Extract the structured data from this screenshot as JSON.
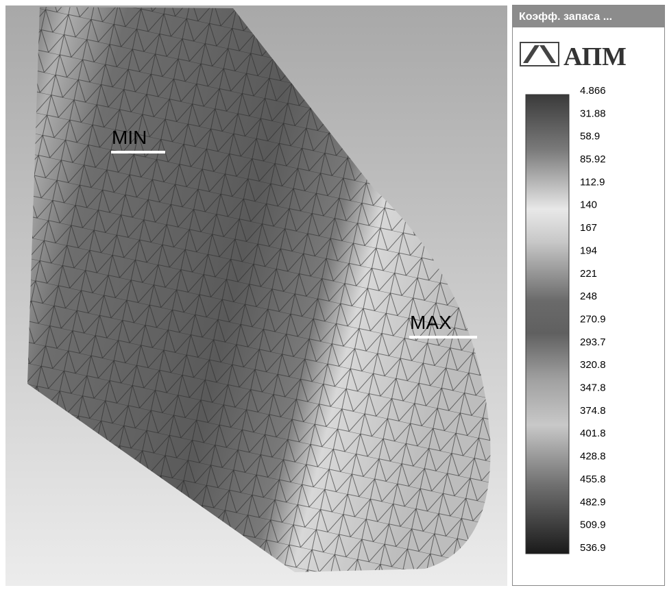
{
  "viewport": {
    "min_label": "MIN",
    "max_label": "MAX"
  },
  "panel": {
    "title": "Коэфф. запаса ...",
    "logo": "АПМ",
    "scale_labels": [
      "4.866",
      "31.88",
      "58.9",
      "85.92",
      "112.9",
      "140",
      "167",
      "194",
      "221",
      "248",
      "270.9",
      "293.7",
      "320.8",
      "347.8",
      "374.8",
      "401.8",
      "428.8",
      "455.8",
      "482.9",
      "509.9",
      "536.9"
    ]
  }
}
